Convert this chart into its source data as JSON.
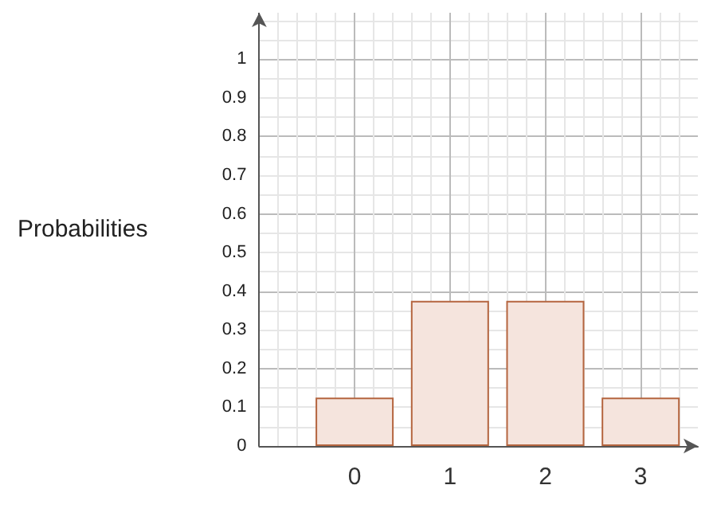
{
  "chart_data": {
    "type": "bar",
    "ylabel": "Probabilities",
    "x": [
      0,
      1,
      2,
      3
    ],
    "values": [
      0.125,
      0.375,
      0.375,
      0.125
    ],
    "color": "#f5e4dd",
    "xlim": [
      -1,
      3.6
    ],
    "xticks": [
      0,
      1,
      2,
      3
    ],
    "ylim": [
      0,
      1.12
    ],
    "yticks": [
      0,
      0.1,
      0.2,
      0.3,
      0.4,
      0.5,
      0.6,
      0.7,
      0.8,
      0.9,
      1
    ],
    "grid": true
  }
}
